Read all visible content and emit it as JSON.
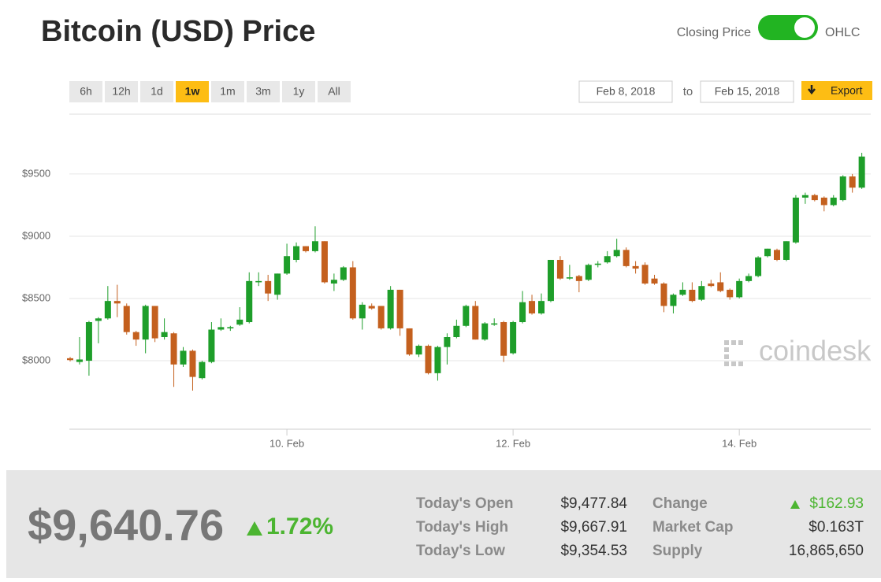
{
  "header": {
    "title": "Bitcoin (USD) Price"
  },
  "toggle": {
    "left": "Closing Price",
    "right": "OHLC"
  },
  "ranges": [
    "6h",
    "12h",
    "1d",
    "1w",
    "1m",
    "3m",
    "1y",
    "All"
  ],
  "active_range": "1w",
  "dates": {
    "from": "Feb 8, 2018",
    "joiner": "to",
    "to": "Feb 15, 2018"
  },
  "export": "Export",
  "watermark": "coindesk",
  "chart_data": {
    "type": "candlestick",
    "up_color": "#1e9e2a",
    "down_color": "#c4601e",
    "grid": true,
    "ylim": [
      7450,
      9980
    ],
    "yticks": [
      {
        "value": 8000,
        "label": "$8000"
      },
      {
        "value": 8500,
        "label": "$8500"
      },
      {
        "value": 9000,
        "label": "$9000"
      },
      {
        "value": 9500,
        "label": "$9500"
      }
    ],
    "xticks": [
      {
        "value": 23,
        "label": "10. Feb"
      },
      {
        "value": 47,
        "label": "12. Feb"
      },
      {
        "value": 71,
        "label": "14. Feb"
      }
    ],
    "categories": [
      null,
      null,
      null,
      null,
      null,
      null,
      null,
      null,
      null,
      null,
      null,
      null,
      null,
      null,
      null,
      null,
      null,
      null,
      null,
      null,
      null,
      null,
      null,
      null,
      null,
      null,
      null,
      null,
      null,
      null,
      null,
      null,
      null,
      null,
      null,
      null,
      null,
      null,
      null,
      null,
      null,
      null,
      null,
      null,
      null,
      null,
      null,
      null,
      null,
      null,
      null,
      null,
      null,
      null,
      null,
      null,
      null,
      null,
      null,
      null,
      null,
      null,
      null,
      null,
      null,
      null,
      null,
      null,
      null,
      null,
      null,
      null,
      null,
      null,
      null,
      null,
      null,
      null,
      null,
      null,
      null,
      null,
      null,
      null,
      null
    ],
    "open": [
      8020,
      7990,
      8000,
      8320,
      8340,
      8480,
      8440,
      8230,
      8170,
      8440,
      8190,
      8220,
      7970,
      8080,
      7860,
      7990,
      8250,
      8260,
      8290,
      8310,
      8630,
      8640,
      8530,
      8700,
      8810,
      8920,
      8880,
      8960,
      8620,
      8650,
      8750,
      8340,
      8440,
      8440,
      8260,
      8570,
      8260,
      8050,
      8120,
      7900,
      8110,
      8190,
      8280,
      8440,
      8170,
      8290,
      8310,
      8060,
      8310,
      8480,
      8380,
      8480,
      8810,
      8660,
      8680,
      8650,
      8770,
      8790,
      8840,
      8890,
      8760,
      8770,
      8660,
      8620,
      8440,
      8530,
      8570,
      8490,
      8620,
      8630,
      8570,
      8510,
      8640,
      8680,
      8840,
      8890,
      8810,
      8950,
      9310,
      9330,
      9310,
      9250,
      9290,
      9480,
      9390
    ],
    "high": [
      8030,
      8190,
      8320,
      8350,
      8600,
      8610,
      8460,
      8240,
      8450,
      8440,
      8340,
      8230,
      8110,
      8090,
      8000,
      8310,
      8340,
      8280,
      8430,
      8710,
      8710,
      8690,
      8700,
      8940,
      8950,
      8920,
      9080,
      8960,
      8700,
      8760,
      8800,
      8470,
      8460,
      8440,
      8600,
      8570,
      8260,
      8130,
      8130,
      8120,
      8220,
      8330,
      8450,
      8480,
      8310,
      8340,
      8320,
      8320,
      8560,
      8530,
      8540,
      8810,
      8840,
      8770,
      8690,
      8780,
      8800,
      8880,
      8980,
      8910,
      8800,
      8790,
      8690,
      8630,
      8540,
      8630,
      8630,
      8640,
      8650,
      8710,
      8580,
      8660,
      8700,
      8840,
      8900,
      8900,
      8960,
      9330,
      9350,
      9340,
      9320,
      9330,
      9490,
      9500,
      9670
    ],
    "low": [
      7995,
      7970,
      7880,
      8140,
      8330,
      8350,
      8210,
      8120,
      8060,
      8150,
      8170,
      7790,
      7950,
      7760,
      7850,
      7980,
      8240,
      8240,
      8280,
      8300,
      8600,
      8480,
      8490,
      8690,
      8790,
      8870,
      8870,
      8620,
      8560,
      8640,
      8330,
      8250,
      8410,
      8250,
      8250,
      8200,
      8040,
      8030,
      7890,
      7840,
      7970,
      8180,
      8270,
      8170,
      8160,
      8280,
      7990,
      8050,
      8300,
      8370,
      8370,
      8470,
      8650,
      8650,
      8550,
      8640,
      8750,
      8780,
      8830,
      8750,
      8700,
      8610,
      8610,
      8390,
      8380,
      8520,
      8470,
      8480,
      8590,
      8550,
      8490,
      8500,
      8630,
      8670,
      8830,
      8800,
      8800,
      8940,
      9260,
      9280,
      9200,
      9240,
      9280,
      9350,
      9380
    ],
    "close": [
      8005,
      8010,
      8310,
      8340,
      8480,
      8460,
      8230,
      8170,
      8440,
      8180,
      8230,
      7970,
      8080,
      7870,
      7990,
      8250,
      8270,
      8270,
      8330,
      8640,
      8640,
      8540,
      8700,
      8840,
      8920,
      8880,
      8960,
      8630,
      8650,
      8750,
      8340,
      8450,
      8420,
      8260,
      8570,
      8260,
      8050,
      8120,
      7900,
      8110,
      8190,
      8280,
      8440,
      8170,
      8300,
      8300,
      8040,
      8310,
      8470,
      8380,
      8480,
      8810,
      8660,
      8670,
      8640,
      8770,
      8780,
      8840,
      8890,
      8760,
      8740,
      8620,
      8620,
      8440,
      8530,
      8570,
      8480,
      8600,
      8600,
      8560,
      8510,
      8640,
      8680,
      8830,
      8900,
      8810,
      8960,
      9310,
      9330,
      9290,
      9250,
      9310,
      9480,
      9390,
      9640
    ]
  },
  "summary": {
    "price": "$9,640.76",
    "change": "1.72%"
  },
  "stats": {
    "left": [
      {
        "label": "Today's Open",
        "value": "$9,477.84"
      },
      {
        "label": "Today's High",
        "value": "$9,667.91"
      },
      {
        "label": "Today's Low",
        "value": "$9,354.53"
      }
    ],
    "right": [
      {
        "label": "Change",
        "value": "$162.93"
      },
      {
        "label": "Market Cap",
        "value": "$0.163T"
      },
      {
        "label": "Supply",
        "value": "16,865,650"
      }
    ]
  }
}
